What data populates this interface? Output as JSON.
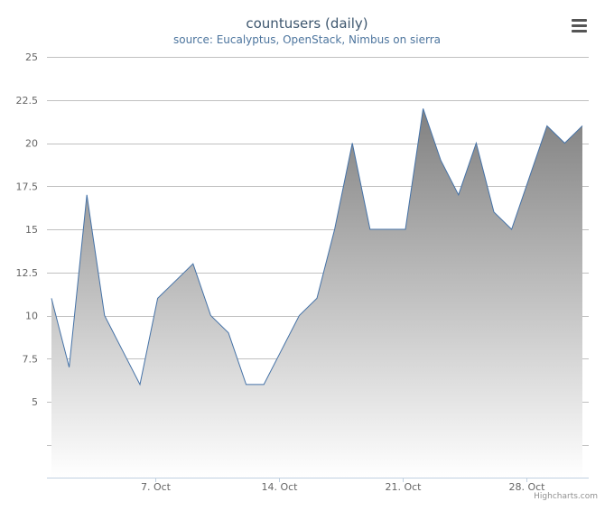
{
  "chart_data": {
    "type": "area",
    "title": "countusers (daily)",
    "subtitle": "source: Eucalyptus, OpenStack, Nimbus on sierra",
    "x": [
      "2013-10-01",
      "2013-10-02",
      "2013-10-03",
      "2013-10-04",
      "2013-10-05",
      "2013-10-06",
      "2013-10-07",
      "2013-10-08",
      "2013-10-09",
      "2013-10-10",
      "2013-10-11",
      "2013-10-12",
      "2013-10-13",
      "2013-10-14",
      "2013-10-15",
      "2013-10-16",
      "2013-10-17",
      "2013-10-18",
      "2013-10-19",
      "2013-10-20",
      "2013-10-21",
      "2013-10-22",
      "2013-10-23",
      "2013-10-24",
      "2013-10-25",
      "2013-10-26",
      "2013-10-27",
      "2013-10-28",
      "2013-10-29",
      "2013-10-30",
      "2013-10-31"
    ],
    "values": [
      11,
      7,
      17,
      10,
      8,
      6,
      11,
      12,
      13,
      10,
      9,
      6,
      6,
      8,
      10,
      11,
      15,
      20,
      15,
      15,
      15,
      22,
      19,
      17,
      20,
      16,
      15,
      18,
      21,
      20,
      21
    ],
    "x_ticks": [
      "7. Oct",
      "14. Oct",
      "21. Oct",
      "28. Oct"
    ],
    "y_ticks": [
      "5",
      "7.5",
      "10",
      "12.5",
      "15",
      "17.5",
      "20",
      "22.5",
      "25"
    ],
    "ylim": [
      0,
      25
    ],
    "grid": true,
    "legend": "none",
    "colors": {
      "line": "#4572a7",
      "fill_top": "#808080",
      "fill_bottom": "#ffffff",
      "grid": "#c0c0c0",
      "axis": "#c0d0e0",
      "label": "#666666"
    }
  },
  "credits": "Highcharts.com",
  "menu_icon": "hamburger-menu-icon"
}
